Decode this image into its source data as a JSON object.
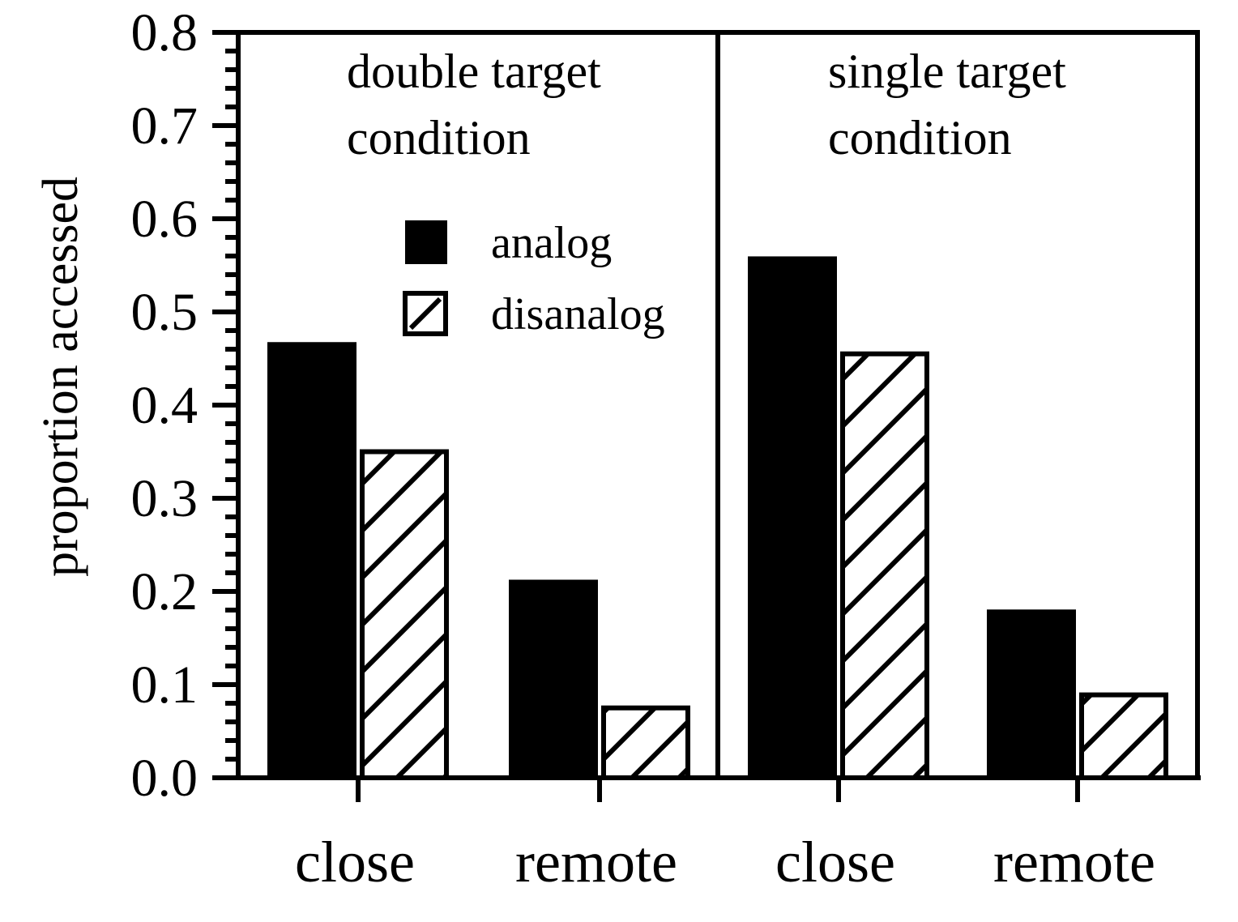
{
  "chart_data": {
    "type": "bar",
    "ylabel": "proportion accessed",
    "ylim": [
      0.0,
      0.8
    ],
    "yticks": [
      "0.0",
      "0.1",
      "0.2",
      "0.3",
      "0.4",
      "0.5",
      "0.6",
      "0.7",
      "0.8"
    ],
    "categories": [
      "close",
      "remote",
      "close",
      "remote"
    ],
    "panels": [
      {
        "title_line1": "double target",
        "title_line2": "condition"
      },
      {
        "title_line1": "single target",
        "title_line2": "condition"
      }
    ],
    "series": [
      {
        "name": "analog",
        "fill": "solid",
        "values": [
          0.465,
          0.21,
          0.557,
          0.178
        ]
      },
      {
        "name": "disanalog",
        "fill": "hatched",
        "values": [
          0.35,
          0.075,
          0.455,
          0.089
        ]
      }
    ],
    "legend_position": "inside-left-panel",
    "grid": false
  },
  "colors": {
    "ink": "#000000",
    "background": "#ffffff"
  }
}
